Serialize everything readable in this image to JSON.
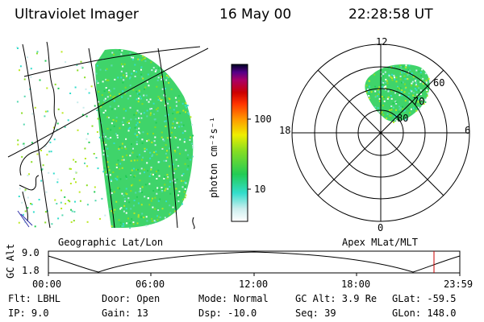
{
  "header": {
    "title": "Ultraviolet Imager",
    "date": "16 May 00",
    "time": "22:28:58 UT"
  },
  "colorbar": {
    "label": "photon cm⁻²s⁻¹",
    "ticks": [
      "100",
      "10"
    ]
  },
  "polar_plot": {
    "mlt_labels": {
      "top": "12",
      "left": "18",
      "right": "6",
      "bottom": "0"
    },
    "lat_labels": [
      "60",
      "70",
      "80"
    ]
  },
  "map_labels": {
    "left": "Geographic Lat/Lon",
    "right": "Apex MLat/MLT"
  },
  "altitude_panel": {
    "axis_label": "GC Alt",
    "y_ticks": [
      "9.0",
      "1.8"
    ],
    "x_ticks": [
      "00:00",
      "06:00",
      "12:00",
      "18:00",
      "23:59"
    ],
    "marker_color": "#cc0000"
  },
  "info": {
    "col1": [
      "Flt: LBHL",
      "IP:  9.0"
    ],
    "col2": [
      "Door: Open",
      "Gain: 13"
    ],
    "col3": [
      "Mode: Normal",
      "Dsp:  -10.0"
    ],
    "col4": [
      "GC Alt: 3.9 Re",
      "Seq: 39"
    ],
    "col5": [
      "GLat: -59.5",
      "GLon: 148.0"
    ]
  }
}
